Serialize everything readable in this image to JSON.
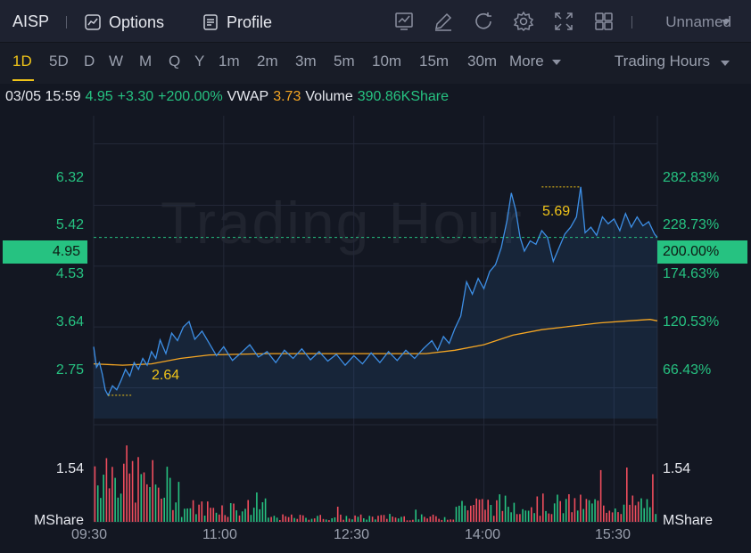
{
  "header": {
    "symbol": "AISP",
    "options_label": "Options",
    "profile_label": "Profile",
    "layout_name": "Unnamed"
  },
  "periods": [
    "1D",
    "5D",
    "D",
    "W",
    "M",
    "Q",
    "Y",
    "1m",
    "2m",
    "3m",
    "5m",
    "10m",
    "15m",
    "30m"
  ],
  "more_label": "More",
  "active_period": "1D",
  "session_label": "Trading Hours",
  "info": {
    "datetime": "03/05 15:59",
    "price": "4.95",
    "change": "+3.30",
    "change_pct": "+200.00%",
    "vwap_label": "VWAP",
    "vwap": "3.73",
    "volume_label": "Volume",
    "volume": "390.86KShare"
  },
  "axis": {
    "left_prices": [
      "6.32",
      "5.42",
      "4.53",
      "3.64",
      "2.75"
    ],
    "right_pcts": [
      "282.83%",
      "228.73%",
      "174.63%",
      "120.53%",
      "66.43%"
    ],
    "current_price": "4.95",
    "current_pct": "200.00%",
    "vol_value": "1.54",
    "vol_unit": "MShare",
    "times": [
      "09:30",
      "11:00",
      "12:30",
      "14:00",
      "15:30"
    ]
  },
  "annotations": {
    "high": "5.69",
    "low": "2.64"
  },
  "watermark": "Trading Hour",
  "colors": {
    "up": "#26c281",
    "down": "#ef4d5d",
    "price_line": "#3d8fe6",
    "vwap": "#f5a623",
    "accent": "#f0c419"
  },
  "chart_data": {
    "type": "line",
    "x_range": [
      "09:30",
      "16:00"
    ],
    "ylim": [
      2.3,
      6.6
    ],
    "price": [
      [
        0,
        3.35
      ],
      [
        2,
        3.05
      ],
      [
        4,
        3.12
      ],
      [
        6,
        2.95
      ],
      [
        8,
        2.72
      ],
      [
        10,
        2.64
      ],
      [
        13,
        2.78
      ],
      [
        16,
        2.72
      ],
      [
        19,
        2.86
      ],
      [
        22,
        3.02
      ],
      [
        25,
        2.92
      ],
      [
        28,
        3.12
      ],
      [
        31,
        3.02
      ],
      [
        34,
        3.18
      ],
      [
        37,
        3.08
      ],
      [
        40,
        3.28
      ],
      [
        43,
        3.18
      ],
      [
        46,
        3.45
      ],
      [
        50,
        3.25
      ],
      [
        54,
        3.55
      ],
      [
        58,
        3.44
      ],
      [
        62,
        3.64
      ],
      [
        66,
        3.72
      ],
      [
        70,
        3.46
      ],
      [
        75,
        3.58
      ],
      [
        80,
        3.4
      ],
      [
        85,
        3.22
      ],
      [
        90,
        3.35
      ],
      [
        96,
        3.15
      ],
      [
        102,
        3.26
      ],
      [
        108,
        3.38
      ],
      [
        114,
        3.2
      ],
      [
        120,
        3.28
      ],
      [
        126,
        3.12
      ],
      [
        132,
        3.3
      ],
      [
        138,
        3.18
      ],
      [
        144,
        3.32
      ],
      [
        150,
        3.16
      ],
      [
        156,
        3.28
      ],
      [
        162,
        3.14
      ],
      [
        168,
        3.24
      ],
      [
        174,
        3.08
      ],
      [
        180,
        3.22
      ],
      [
        186,
        3.1
      ],
      [
        192,
        3.26
      ],
      [
        198,
        3.12
      ],
      [
        204,
        3.28
      ],
      [
        210,
        3.15
      ],
      [
        216,
        3.3
      ],
      [
        222,
        3.18
      ],
      [
        228,
        3.32
      ],
      [
        234,
        3.44
      ],
      [
        238,
        3.3
      ],
      [
        242,
        3.5
      ],
      [
        246,
        3.4
      ],
      [
        250,
        3.62
      ],
      [
        254,
        3.8
      ],
      [
        258,
        4.3
      ],
      [
        262,
        4.12
      ],
      [
        266,
        4.35
      ],
      [
        270,
        4.2
      ],
      [
        274,
        4.45
      ],
      [
        278,
        4.55
      ],
      [
        282,
        4.8
      ],
      [
        286,
        5.2
      ],
      [
        289,
        5.6
      ],
      [
        292,
        5.35
      ],
      [
        295,
        4.95
      ],
      [
        298,
        4.75
      ],
      [
        302,
        4.9
      ],
      [
        306,
        4.85
      ],
      [
        310,
        5.05
      ],
      [
        314,
        4.95
      ],
      [
        318,
        4.6
      ],
      [
        322,
        4.8
      ],
      [
        326,
        5.0
      ],
      [
        330,
        5.1
      ],
      [
        334,
        5.25
      ],
      [
        337,
        5.69
      ],
      [
        340,
        5.02
      ],
      [
        344,
        5.1
      ],
      [
        348,
        4.98
      ],
      [
        352,
        5.25
      ],
      [
        356,
        5.15
      ],
      [
        360,
        5.22
      ],
      [
        364,
        5.05
      ],
      [
        368,
        5.3
      ],
      [
        372,
        5.1
      ],
      [
        376,
        5.25
      ],
      [
        380,
        5.12
      ],
      [
        384,
        5.18
      ],
      [
        388,
        5.0
      ],
      [
        390,
        4.95
      ]
    ],
    "vwap": [
      [
        0,
        3.1
      ],
      [
        20,
        3.08
      ],
      [
        40,
        3.1
      ],
      [
        60,
        3.18
      ],
      [
        80,
        3.23
      ],
      [
        120,
        3.25
      ],
      [
        180,
        3.25
      ],
      [
        230,
        3.25
      ],
      [
        250,
        3.3
      ],
      [
        270,
        3.38
      ],
      [
        290,
        3.52
      ],
      [
        310,
        3.6
      ],
      [
        330,
        3.65
      ],
      [
        350,
        3.7
      ],
      [
        370,
        3.73
      ],
      [
        385,
        3.75
      ],
      [
        390,
        3.73
      ]
    ],
    "vol_max": 1.54
  }
}
